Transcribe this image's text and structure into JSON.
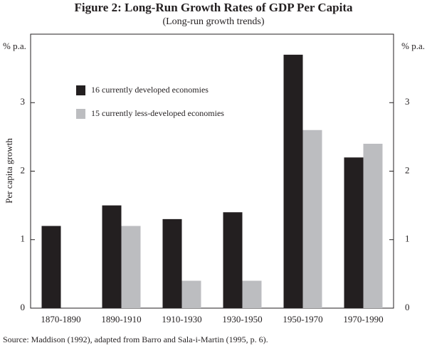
{
  "chart_data": {
    "type": "bar",
    "title": "Figure 2: Long-Run Growth Rates of GDP Per Capita",
    "subtitle": "(Long-run growth trends)",
    "ylabel": "Per capita growth",
    "yunit": "% p.a.",
    "y2unit": "% p.a.",
    "categories": [
      "1870-1890",
      "1890-1910",
      "1910-1930",
      "1930-1950",
      "1950-1970",
      "1970-1990"
    ],
    "series": [
      {
        "name": "16 currently developed economies",
        "color": "#231f20",
        "values": [
          1.2,
          1.5,
          1.3,
          1.4,
          3.7,
          2.2
        ]
      },
      {
        "name": "15 currently less-developed economies",
        "color": "#bcbdc0",
        "values": [
          null,
          1.2,
          0.4,
          0.4,
          2.6,
          2.4
        ]
      }
    ],
    "ylim": [
      0,
      4
    ],
    "yticks": [
      0,
      1,
      2,
      3
    ],
    "y2lim": [
      0,
      4
    ],
    "y2ticks": [
      0,
      1,
      2,
      3
    ],
    "legend": "upper left",
    "note": "Source:  Maddison (1992), adapted from Barro and Sala-i-Martin (1995, p. 6)."
  }
}
